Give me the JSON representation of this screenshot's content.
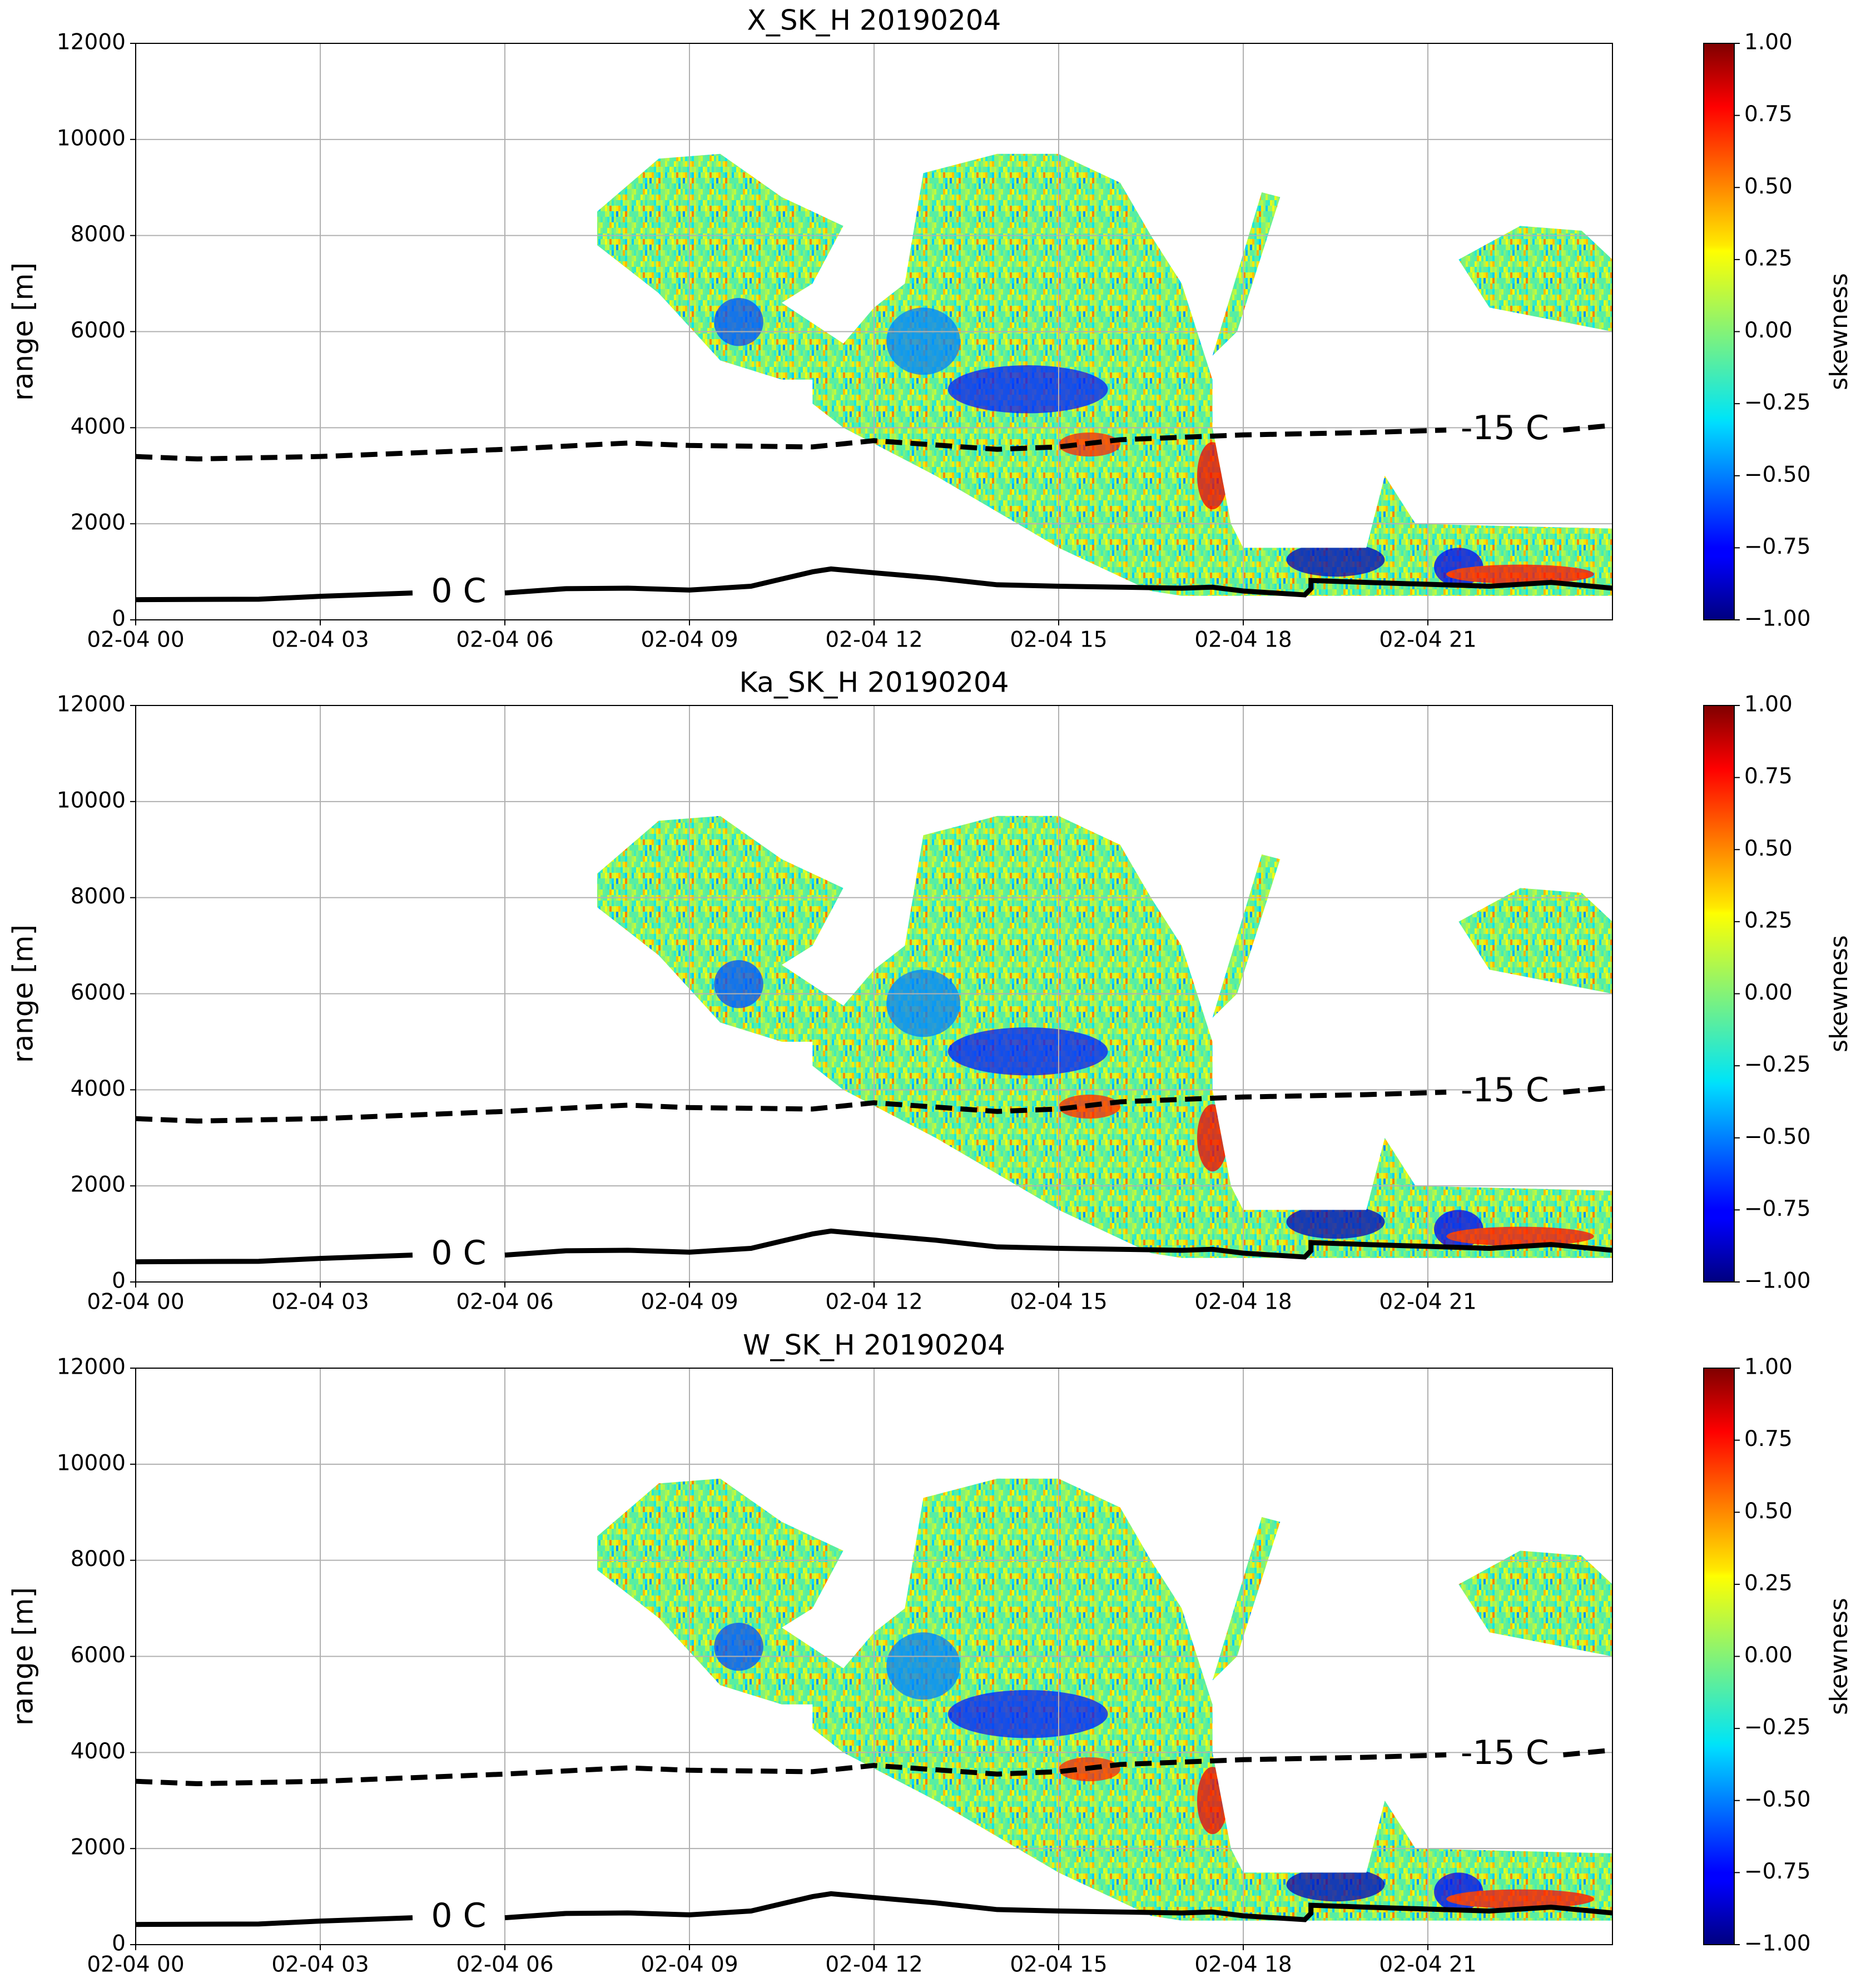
{
  "chart_data": [
    {
      "type": "heatmap",
      "title": "X_SK_H 20190204",
      "ylabel": "range [m]",
      "xlim": [
        0,
        24
      ],
      "xticks": [
        {
          "value": 0,
          "label": "02-04 00"
        },
        {
          "value": 3,
          "label": "02-04 03"
        },
        {
          "value": 6,
          "label": "02-04 06"
        },
        {
          "value": 9,
          "label": "02-04 09"
        },
        {
          "value": 12,
          "label": "02-04 12"
        },
        {
          "value": 15,
          "label": "02-04 15"
        },
        {
          "value": 18,
          "label": "02-04 18"
        },
        {
          "value": 21,
          "label": "02-04 21"
        }
      ],
      "ylim": [
        0,
        12000
      ],
      "yticks": [
        0,
        2000,
        4000,
        6000,
        8000,
        10000,
        12000
      ],
      "grid": true,
      "series": [
        {
          "name": "-15 C",
          "color": "#000000",
          "dashed": true,
          "x": [
            0,
            1,
            3,
            6,
            7.5,
            8,
            9,
            11,
            12,
            14,
            15,
            16,
            18,
            20,
            21.3,
            null,
            23.2,
            24
          ],
          "values": [
            3400,
            3350,
            3400,
            3550,
            3650,
            3680,
            3630,
            3600,
            3730,
            3550,
            3600,
            3750,
            3850,
            3900,
            3950,
            null,
            3950,
            4050
          ]
        },
        {
          "name": "0 C",
          "color": "#000000",
          "dashed": false,
          "x": [
            0,
            2,
            3,
            4.5,
            null,
            6,
            7,
            8,
            9,
            10,
            10.5,
            11,
            11.3,
            12,
            13,
            14,
            15,
            16,
            17,
            17.5,
            18,
            19,
            19.1,
            19.1,
            20,
            22,
            23,
            24
          ],
          "values": [
            420,
            430,
            490,
            560,
            null,
            560,
            650,
            660,
            620,
            700,
            850,
            1000,
            1060,
            980,
            870,
            730,
            700,
            680,
            660,
            680,
            600,
            520,
            650,
            820,
            780,
            700,
            780,
            660
          ]
        }
      ],
      "colorbar": {
        "label": "skewness",
        "colormap": "jet",
        "lim": [
          -1,
          1
        ],
        "ticks": [
          {
            "value": 1,
            "label": "1.00"
          },
          {
            "value": 0.75,
            "label": "0.75"
          },
          {
            "value": 0.5,
            "label": "0.50"
          },
          {
            "value": 0.25,
            "label": "0.25"
          },
          {
            "value": 0,
            "label": "0.00"
          },
          {
            "value": -0.25,
            "label": "−0.25"
          },
          {
            "value": -0.5,
            "label": "−0.50"
          },
          {
            "value": -0.75,
            "label": "−0.75"
          },
          {
            "value": -1,
            "label": "−1.00"
          }
        ]
      }
    },
    {
      "type": "heatmap",
      "title": "Ka_SK_H 20190204",
      "ylabel": "range [m]",
      "xlim": [
        0,
        24
      ],
      "xticks": [
        {
          "value": 0,
          "label": "02-04 00"
        },
        {
          "value": 3,
          "label": "02-04 03"
        },
        {
          "value": 6,
          "label": "02-04 06"
        },
        {
          "value": 9,
          "label": "02-04 09"
        },
        {
          "value": 12,
          "label": "02-04 12"
        },
        {
          "value": 15,
          "label": "02-04 15"
        },
        {
          "value": 18,
          "label": "02-04 18"
        },
        {
          "value": 21,
          "label": "02-04 21"
        }
      ],
      "ylim": [
        0,
        12000
      ],
      "yticks": [
        0,
        2000,
        4000,
        6000,
        8000,
        10000,
        12000
      ],
      "grid": true,
      "series": [
        {
          "name": "-15 C",
          "color": "#000000",
          "dashed": true,
          "x": [
            0,
            1,
            3,
            6,
            7.5,
            8,
            9,
            11,
            12,
            14,
            15,
            16,
            18,
            20,
            21.3,
            null,
            23.2,
            24
          ],
          "values": [
            3400,
            3350,
            3400,
            3550,
            3650,
            3680,
            3630,
            3600,
            3730,
            3550,
            3600,
            3750,
            3850,
            3900,
            3950,
            null,
            3950,
            4050
          ]
        },
        {
          "name": "0 C",
          "color": "#000000",
          "dashed": false,
          "x": [
            0,
            2,
            3,
            4.5,
            null,
            6,
            7,
            8,
            9,
            10,
            10.5,
            11,
            11.3,
            12,
            13,
            14,
            15,
            16,
            17,
            17.5,
            18,
            19,
            19.1,
            19.1,
            20,
            22,
            23,
            24
          ],
          "values": [
            420,
            430,
            490,
            560,
            null,
            560,
            650,
            660,
            620,
            700,
            850,
            1000,
            1060,
            980,
            870,
            730,
            700,
            680,
            660,
            680,
            600,
            520,
            650,
            820,
            780,
            700,
            780,
            660
          ]
        }
      ],
      "colorbar": {
        "label": "skewness",
        "colormap": "jet",
        "lim": [
          -1,
          1
        ],
        "ticks": [
          {
            "value": 1,
            "label": "1.00"
          },
          {
            "value": 0.75,
            "label": "0.75"
          },
          {
            "value": 0.5,
            "label": "0.50"
          },
          {
            "value": 0.25,
            "label": "0.25"
          },
          {
            "value": 0,
            "label": "0.00"
          },
          {
            "value": -0.25,
            "label": "−0.25"
          },
          {
            "value": -0.5,
            "label": "−0.50"
          },
          {
            "value": -0.75,
            "label": "−0.75"
          },
          {
            "value": -1,
            "label": "−1.00"
          }
        ]
      }
    },
    {
      "type": "heatmap",
      "title": "W_SK_H 20190204",
      "ylabel": "range [m]",
      "xlim": [
        0,
        24
      ],
      "xticks": [
        {
          "value": 0,
          "label": "02-04 00"
        },
        {
          "value": 3,
          "label": "02-04 03"
        },
        {
          "value": 6,
          "label": "02-04 06"
        },
        {
          "value": 9,
          "label": "02-04 09"
        },
        {
          "value": 12,
          "label": "02-04 12"
        },
        {
          "value": 15,
          "label": "02-04 15"
        },
        {
          "value": 18,
          "label": "02-04 18"
        },
        {
          "value": 21,
          "label": "02-04 21"
        }
      ],
      "ylim": [
        0,
        12000
      ],
      "yticks": [
        0,
        2000,
        4000,
        6000,
        8000,
        10000,
        12000
      ],
      "grid": true,
      "series": [
        {
          "name": "-15 C",
          "color": "#000000",
          "dashed": true,
          "x": [
            0,
            1,
            3,
            6,
            7.5,
            8,
            9,
            11,
            12,
            14,
            15,
            16,
            18,
            20,
            21.3,
            null,
            23.2,
            24
          ],
          "values": [
            3400,
            3350,
            3400,
            3550,
            3650,
            3680,
            3630,
            3600,
            3730,
            3550,
            3600,
            3750,
            3850,
            3900,
            3950,
            null,
            3950,
            4050
          ]
        },
        {
          "name": "0 C",
          "color": "#000000",
          "dashed": false,
          "x": [
            0,
            2,
            3,
            4.5,
            null,
            6,
            7,
            8,
            9,
            10,
            10.5,
            11,
            11.3,
            12,
            13,
            14,
            15,
            16,
            17,
            17.5,
            18,
            19,
            19.1,
            19.1,
            20,
            22,
            23,
            24
          ],
          "values": [
            420,
            430,
            490,
            560,
            null,
            560,
            650,
            660,
            620,
            700,
            850,
            1000,
            1060,
            980,
            870,
            730,
            700,
            680,
            660,
            680,
            600,
            520,
            650,
            820,
            780,
            700,
            780,
            660
          ]
        }
      ],
      "colorbar": {
        "label": "skewness",
        "colormap": "jet",
        "lim": [
          -1,
          1
        ],
        "ticks": [
          {
            "value": 1,
            "label": "1.00"
          },
          {
            "value": 0.75,
            "label": "0.75"
          },
          {
            "value": 0.5,
            "label": "0.50"
          },
          {
            "value": 0.25,
            "label": "0.25"
          },
          {
            "value": 0,
            "label": "0.00"
          },
          {
            "value": -0.25,
            "label": "−0.25"
          },
          {
            "value": -0.5,
            "label": "−0.50"
          },
          {
            "value": -0.75,
            "label": "−0.75"
          },
          {
            "value": -1,
            "label": "−1.00"
          }
        ]
      }
    }
  ]
}
